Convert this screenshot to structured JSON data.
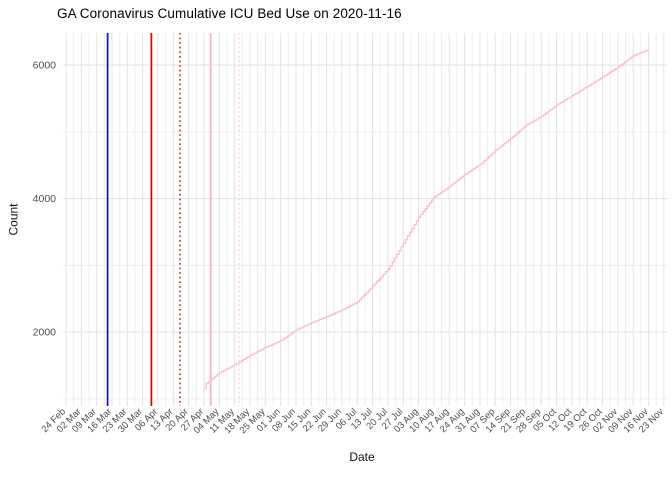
{
  "title": "GA Coronavirus Cumulative ICU Bed Use on 2020-11-16",
  "colors": {
    "background": "#FFFFFF",
    "grid_major": "#E4E4E4",
    "grid_minor": "#ECECEC",
    "tick_label": "#4D4D4D",
    "series_line": "#F8C0CB"
  },
  "chart_data": {
    "type": "line",
    "title": "GA Coronavirus Cumulative ICU Bed Use on 2020-11-16",
    "xlabel": "Date",
    "ylabel": "Count",
    "grid": "on",
    "legend": "none",
    "ylim": [
      892,
      6480
    ],
    "y_ticks": [
      2000,
      4000,
      6000
    ],
    "y_minor_ticks": [
      1000,
      3000,
      5000
    ],
    "x_start_date": "2020-02-24",
    "x_tick_interval_days": 7,
    "x_tick_labels": [
      "24 Feb",
      "02 Mar",
      "09 Mar",
      "16 Mar",
      "23 Mar",
      "30 Mar",
      "06 Apr",
      "13 Apr",
      "20 Apr",
      "27 Apr",
      "04 May",
      "11 May",
      "18 May",
      "25 May",
      "01 Jun",
      "08 Jun",
      "15 Jun",
      "22 Jun",
      "29 Jun",
      "06 Jul",
      "13 Jul",
      "20 Jul",
      "27 Jul",
      "03 Aug",
      "10 Aug",
      "17 Aug",
      "24 Aug",
      "31 Aug",
      "07 Sep",
      "14 Sep",
      "21 Sep",
      "28 Sep",
      "05 Oct",
      "12 Oct",
      "19 Oct",
      "26 Oct",
      "02 Nov",
      "09 Nov",
      "16 Nov",
      "23 Nov"
    ],
    "reference_lines": [
      {
        "name": "vline-solid-blue",
        "date": "2020-03-14",
        "color": "#0B0BD6",
        "style": "solid"
      },
      {
        "name": "vline-solid-red",
        "date": "2020-04-03",
        "color": "#E00000",
        "style": "solid"
      },
      {
        "name": "vline-dotted-red",
        "date": "2020-04-16",
        "color": "#E00000",
        "style": "dotted"
      },
      {
        "name": "vline-solid-pink",
        "date": "2020-04-30",
        "color": "#FFB3C1",
        "style": "solid"
      },
      {
        "name": "vline-dotted-pink",
        "date": "2020-05-13",
        "color": "#FFC9D4",
        "style": "dotted"
      }
    ],
    "series": [
      {
        "name": "cumulative-icu-bed-use",
        "color": "#F8C0CB",
        "points": [
          {
            "date": "2020-04-27",
            "value": 1150
          },
          {
            "date": "2020-04-28",
            "value": 1230
          },
          {
            "date": "2020-05-04",
            "value": 1390
          },
          {
            "date": "2020-05-11",
            "value": 1510
          },
          {
            "date": "2020-05-18",
            "value": 1650
          },
          {
            "date": "2020-05-25",
            "value": 1770
          },
          {
            "date": "2020-06-01",
            "value": 1870
          },
          {
            "date": "2020-06-08",
            "value": 2030
          },
          {
            "date": "2020-06-15",
            "value": 2140
          },
          {
            "date": "2020-06-22",
            "value": 2230
          },
          {
            "date": "2020-06-29",
            "value": 2330
          },
          {
            "date": "2020-07-06",
            "value": 2450
          },
          {
            "date": "2020-07-13",
            "value": 2690
          },
          {
            "date": "2020-07-20",
            "value": 2940
          },
          {
            "date": "2020-07-27",
            "value": 3330
          },
          {
            "date": "2020-08-03",
            "value": 3720
          },
          {
            "date": "2020-08-10",
            "value": 4020
          },
          {
            "date": "2020-08-17",
            "value": 4180
          },
          {
            "date": "2020-08-24",
            "value": 4360
          },
          {
            "date": "2020-08-31",
            "value": 4510
          },
          {
            "date": "2020-09-07",
            "value": 4720
          },
          {
            "date": "2020-09-14",
            "value": 4900
          },
          {
            "date": "2020-09-21",
            "value": 5100
          },
          {
            "date": "2020-09-28",
            "value": 5230
          },
          {
            "date": "2020-10-05",
            "value": 5400
          },
          {
            "date": "2020-10-12",
            "value": 5540
          },
          {
            "date": "2020-10-19",
            "value": 5680
          },
          {
            "date": "2020-10-26",
            "value": 5820
          },
          {
            "date": "2020-11-02",
            "value": 5970
          },
          {
            "date": "2020-11-09",
            "value": 6140
          },
          {
            "date": "2020-11-16",
            "value": 6235
          }
        ]
      }
    ]
  }
}
